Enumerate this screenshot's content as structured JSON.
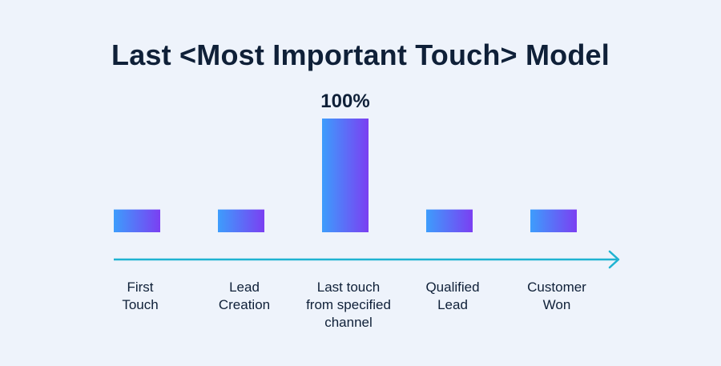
{
  "colors": {
    "background": "#eef3fb",
    "text": "#0f2038",
    "bar_start": "#3d9dfc",
    "bar_end": "#7b3ff2",
    "axis": "#1fb3d1"
  },
  "chart_data": {
    "type": "bar",
    "title": "Last <Most Important Touch> Model",
    "categories": [
      [
        "First",
        "Touch"
      ],
      [
        "Lead",
        "Creation"
      ],
      [
        "Last touch",
        "from specified",
        "channel"
      ],
      [
        "Qualified",
        "Lead"
      ],
      [
        "Customer",
        "Won"
      ]
    ],
    "values": [
      20,
      20,
      100,
      20,
      20
    ],
    "data_labels": [
      "",
      "",
      "100%",
      "",
      ""
    ],
    "ylim": [
      0,
      100
    ],
    "xlabel": "",
    "ylabel": "",
    "grid": false,
    "axis_arrow": true
  }
}
